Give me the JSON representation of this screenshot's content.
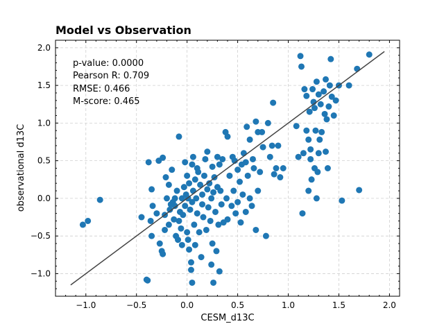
{
  "chart_data": {
    "type": "scatter",
    "title": "Model vs Observation",
    "xlabel": "CESM_d13C",
    "ylabel": "observational d13C",
    "xlim": [
      -1.3,
      2.1
    ],
    "ylim": [
      -1.3,
      2.1
    ],
    "xticks": [
      -1.0,
      -0.5,
      0.0,
      0.5,
      1.0,
      1.5,
      2.0
    ],
    "xtick_labels": [
      "−1.0",
      "−0.5",
      "0.0",
      "0.5",
      "1.0",
      "1.5",
      "2.0"
    ],
    "yticks": [
      -1.0,
      -0.5,
      0.0,
      0.5,
      1.0,
      1.5,
      2.0
    ],
    "ytick_labels": [
      "−1.0",
      "−0.5",
      "0.0",
      "0.5",
      "1.0",
      "1.5",
      "2.0"
    ],
    "grid": true,
    "point_color": "#1f77b4",
    "line_color": "#444444",
    "fit_line": {
      "x": [
        -1.15,
        1.95
      ],
      "y": [
        -1.15,
        1.95
      ]
    },
    "annotations": [
      "p-value: 0.0000",
      "Pearson R: 0.709",
      "RMSE: 0.466",
      "M-score: 0.465"
    ],
    "points": [
      [
        -1.03,
        -0.35
      ],
      [
        -0.98,
        -0.3
      ],
      [
        -0.86,
        -0.02
      ],
      [
        -0.45,
        -0.25
      ],
      [
        -0.4,
        -1.08
      ],
      [
        -0.39,
        -1.09
      ],
      [
        -0.38,
        0.48
      ],
      [
        -0.36,
        -0.3
      ],
      [
        -0.35,
        -0.5
      ],
      [
        -0.35,
        0.12
      ],
      [
        -0.34,
        -0.1
      ],
      [
        -0.3,
        -0.2
      ],
      [
        -0.28,
        0.5
      ],
      [
        -0.27,
        -0.6
      ],
      [
        -0.25,
        -0.7
      ],
      [
        -0.24,
        -0.74
      ],
      [
        -0.24,
        0.54
      ],
      [
        -0.22,
        -0.22
      ],
      [
        -0.22,
        -0.42
      ],
      [
        -0.21,
        0.28
      ],
      [
        -0.2,
        0.0
      ],
      [
        -0.18,
        0.18
      ],
      [
        -0.18,
        -0.35
      ],
      [
        -0.17,
        -0.15
      ],
      [
        -0.16,
        -0.08
      ],
      [
        -0.15,
        0.38
      ],
      [
        -0.14,
        -0.05
      ],
      [
        -0.13,
        -0.28
      ],
      [
        -0.12,
        0.0
      ],
      [
        -0.12,
        -0.1
      ],
      [
        -0.11,
        -0.5
      ],
      [
        -0.1,
        0.1
      ],
      [
        -0.09,
        -0.55
      ],
      [
        -0.08,
        -0.3
      ],
      [
        -0.08,
        0.82
      ],
      [
        -0.07,
        -0.18
      ],
      [
        -0.06,
        -0.4
      ],
      [
        -0.05,
        0.0
      ],
      [
        -0.05,
        -0.62
      ],
      [
        -0.04,
        -0.22
      ],
      [
        -0.03,
        0.15
      ],
      [
        -0.02,
        0.48
      ],
      [
        -0.02,
        -0.1
      ],
      [
        -0.01,
        0.05
      ],
      [
        0.0,
        0.3
      ],
      [
        0.0,
        -0.45
      ],
      [
        0.01,
        -0.55
      ],
      [
        0.01,
        0.0
      ],
      [
        0.02,
        -0.68
      ],
      [
        0.02,
        0.2
      ],
      [
        0.03,
        -0.15
      ],
      [
        0.04,
        -0.95
      ],
      [
        0.04,
        -0.85
      ],
      [
        0.05,
        0.45
      ],
      [
        0.05,
        -0.05
      ],
      [
        0.05,
        -1.12
      ],
      [
        0.06,
        0.1
      ],
      [
        0.06,
        0.55
      ],
      [
        0.07,
        -0.35
      ],
      [
        0.08,
        0.25
      ],
      [
        0.08,
        -0.62
      ],
      [
        0.09,
        0.0
      ],
      [
        0.1,
        -0.2
      ],
      [
        0.1,
        0.4
      ],
      [
        0.11,
        0.35
      ],
      [
        0.12,
        -0.45
      ],
      [
        0.13,
        0.18
      ],
      [
        0.14,
        -0.78
      ],
      [
        0.15,
        -0.08
      ],
      [
        0.15,
        0.05
      ],
      [
        0.16,
        -0.25
      ],
      [
        0.17,
        0.3
      ],
      [
        0.18,
        0.52
      ],
      [
        0.19,
        -0.42
      ],
      [
        0.2,
        0.62
      ],
      [
        0.2,
        0.12
      ],
      [
        0.21,
        -0.12
      ],
      [
        0.22,
        0.2
      ],
      [
        0.23,
        -0.3
      ],
      [
        0.24,
        0.0
      ],
      [
        0.24,
        -0.88
      ],
      [
        0.25,
        -0.6
      ],
      [
        0.25,
        0.42
      ],
      [
        0.26,
        -1.12
      ],
      [
        0.26,
        0.08
      ],
      [
        0.27,
        0.28
      ],
      [
        0.28,
        -0.18
      ],
      [
        0.29,
        -0.7
      ],
      [
        0.3,
        0.55
      ],
      [
        0.3,
        0.15
      ],
      [
        0.31,
        -0.35
      ],
      [
        0.32,
        -0.97
      ],
      [
        0.32,
        0.45
      ],
      [
        0.33,
        0.1
      ],
      [
        0.34,
        -0.08
      ],
      [
        0.35,
        0.52
      ],
      [
        0.36,
        -0.32
      ],
      [
        0.38,
        0.88
      ],
      [
        0.39,
        0.0
      ],
      [
        0.4,
        -0.28
      ],
      [
        0.4,
        0.82
      ],
      [
        0.42,
        0.3
      ],
      [
        0.44,
        -0.1
      ],
      [
        0.45,
        0.55
      ],
      [
        0.46,
        0.1
      ],
      [
        0.47,
        0.5
      ],
      [
        0.48,
        -0.2
      ],
      [
        0.5,
        0.38
      ],
      [
        0.5,
        -0.05
      ],
      [
        0.52,
        0.22
      ],
      [
        0.53,
        -0.32
      ],
      [
        0.54,
        0.45
      ],
      [
        0.55,
        0.05
      ],
      [
        0.56,
        0.6
      ],
      [
        0.58,
        0.48
      ],
      [
        0.58,
        -0.18
      ],
      [
        0.59,
        0.95
      ],
      [
        0.6,
        0.3
      ],
      [
        0.62,
        0.78
      ],
      [
        0.62,
        0.0
      ],
      [
        0.64,
        -0.1
      ],
      [
        0.65,
        0.52
      ],
      [
        0.66,
        0.4
      ],
      [
        0.68,
        1.02
      ],
      [
        0.68,
        -0.42
      ],
      [
        0.7,
        0.88
      ],
      [
        0.7,
        0.1
      ],
      [
        0.72,
        0.35
      ],
      [
        0.74,
        0.88
      ],
      [
        0.75,
        0.68
      ],
      [
        0.78,
        -0.5
      ],
      [
        0.8,
        1.0
      ],
      [
        0.82,
        0.55
      ],
      [
        0.84,
        0.7
      ],
      [
        0.85,
        1.27
      ],
      [
        0.86,
        0.32
      ],
      [
        0.88,
        0.4
      ],
      [
        0.9,
        0.7
      ],
      [
        0.92,
        0.28
      ],
      [
        0.95,
        0.4
      ],
      [
        1.08,
        0.96
      ],
      [
        1.1,
        0.55
      ],
      [
        1.12,
        1.89
      ],
      [
        1.13,
        1.75
      ],
      [
        1.14,
        -0.2
      ],
      [
        1.15,
        0.6
      ],
      [
        1.16,
        1.45
      ],
      [
        1.18,
        1.36
      ],
      [
        1.18,
        0.9
      ],
      [
        1.2,
        0.1
      ],
      [
        1.2,
        0.78
      ],
      [
        1.21,
        1.15
      ],
      [
        1.22,
        0.52
      ],
      [
        1.22,
        0.65
      ],
      [
        1.23,
        0.25
      ],
      [
        1.24,
        1.45
      ],
      [
        1.25,
        1.28
      ],
      [
        1.26,
        1.2
      ],
      [
        1.26,
        0.4
      ],
      [
        1.27,
        0.9
      ],
      [
        1.28,
        1.55
      ],
      [
        1.28,
        0.0
      ],
      [
        1.29,
        0.35
      ],
      [
        1.3,
        0.6
      ],
      [
        1.3,
        1.38
      ],
      [
        1.31,
        0.78
      ],
      [
        1.32,
        1.25
      ],
      [
        1.33,
        0.88
      ],
      [
        1.35,
        1.42
      ],
      [
        1.36,
        1.12
      ],
      [
        1.37,
        0.62
      ],
      [
        1.37,
        1.58
      ],
      [
        1.38,
        1.05
      ],
      [
        1.39,
        0.4
      ],
      [
        1.4,
        1.22
      ],
      [
        1.41,
        1.5
      ],
      [
        1.42,
        1.85
      ],
      [
        1.43,
        1.35
      ],
      [
        1.45,
        1.1
      ],
      [
        1.47,
        1.3
      ],
      [
        1.5,
        1.5
      ],
      [
        1.53,
        -0.03
      ],
      [
        1.6,
        1.5
      ],
      [
        1.68,
        1.72
      ],
      [
        1.7,
        0.11
      ],
      [
        1.8,
        1.91
      ]
    ]
  }
}
